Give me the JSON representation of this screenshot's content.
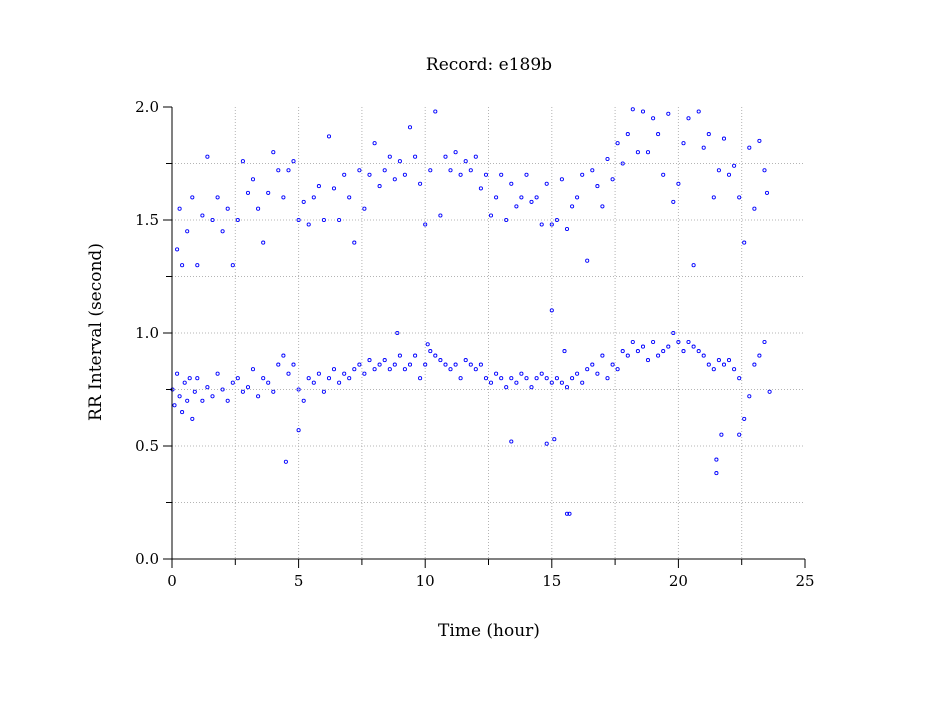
{
  "chart_data": {
    "type": "scatter",
    "title": "Record:  e189b",
    "xlabel": "Time (hour)",
    "ylabel": "RR Interval (second)",
    "xlim": [
      0,
      25
    ],
    "ylim": [
      0.0,
      2.0
    ],
    "x_ticks": [
      "0",
      "5",
      "10",
      "15",
      "20",
      "25"
    ],
    "y_ticks": [
      "0.0",
      "0.5",
      "1.0",
      "1.5",
      "2.0"
    ],
    "grid": true,
    "grid_style": "dotted",
    "marker": "open-circle",
    "colors": {
      "points": "#0000ff",
      "axes": "#000000",
      "grid": "#b4b4b4"
    },
    "x_range_of_data": [
      0.0,
      23.6
    ],
    "series": [
      {
        "points": [
          [
            0.02,
            0.75
          ],
          [
            0.1,
            0.68
          ],
          [
            0.2,
            0.82
          ],
          [
            0.3,
            0.72
          ],
          [
            0.4,
            0.65
          ],
          [
            0.5,
            0.78
          ],
          [
            0.6,
            0.7
          ],
          [
            0.7,
            0.8
          ],
          [
            0.8,
            0.62
          ],
          [
            0.9,
            0.74
          ],
          [
            1.0,
            0.8
          ],
          [
            1.2,
            0.7
          ],
          [
            1.4,
            0.76
          ],
          [
            1.6,
            0.72
          ],
          [
            1.8,
            0.82
          ],
          [
            2.0,
            0.75
          ],
          [
            2.2,
            0.7
          ],
          [
            2.4,
            0.78
          ],
          [
            2.6,
            0.8
          ],
          [
            2.8,
            0.74
          ],
          [
            3.0,
            0.76
          ],
          [
            3.2,
            0.84
          ],
          [
            3.4,
            0.72
          ],
          [
            3.6,
            0.8
          ],
          [
            3.8,
            0.78
          ],
          [
            4.0,
            0.74
          ],
          [
            4.2,
            0.86
          ],
          [
            4.4,
            0.9
          ],
          [
            4.6,
            0.82
          ],
          [
            4.8,
            0.86
          ],
          [
            5.0,
            0.75
          ],
          [
            5.2,
            0.7
          ],
          [
            5.4,
            0.8
          ],
          [
            5.6,
            0.78
          ],
          [
            5.8,
            0.82
          ],
          [
            6.0,
            0.74
          ],
          [
            6.2,
            0.8
          ],
          [
            6.4,
            0.84
          ],
          [
            6.6,
            0.78
          ],
          [
            6.8,
            0.82
          ],
          [
            7.0,
            0.8
          ],
          [
            7.2,
            0.84
          ],
          [
            7.4,
            0.86
          ],
          [
            7.6,
            0.82
          ],
          [
            7.8,
            0.88
          ],
          [
            8.0,
            0.84
          ],
          [
            8.2,
            0.86
          ],
          [
            8.4,
            0.88
          ],
          [
            8.6,
            0.84
          ],
          [
            8.8,
            0.86
          ],
          [
            9.0,
            0.9
          ],
          [
            9.2,
            0.84
          ],
          [
            9.4,
            0.86
          ],
          [
            9.6,
            0.9
          ],
          [
            9.8,
            0.8
          ],
          [
            10.0,
            0.86
          ],
          [
            10.2,
            0.92
          ],
          [
            10.4,
            0.9
          ],
          [
            10.6,
            0.88
          ],
          [
            10.8,
            0.86
          ],
          [
            11.0,
            0.84
          ],
          [
            11.2,
            0.86
          ],
          [
            11.4,
            0.8
          ],
          [
            11.6,
            0.88
          ],
          [
            11.8,
            0.86
          ],
          [
            12.0,
            0.84
          ],
          [
            12.2,
            0.86
          ],
          [
            12.4,
            0.8
          ],
          [
            12.6,
            0.78
          ],
          [
            12.8,
            0.82
          ],
          [
            13.0,
            0.8
          ],
          [
            13.2,
            0.76
          ],
          [
            13.4,
            0.8
          ],
          [
            13.6,
            0.78
          ],
          [
            13.8,
            0.82
          ],
          [
            14.0,
            0.8
          ],
          [
            14.2,
            0.76
          ],
          [
            14.4,
            0.8
          ],
          [
            14.6,
            0.82
          ],
          [
            14.8,
            0.8
          ],
          [
            15.0,
            0.78
          ],
          [
            15.2,
            0.8
          ],
          [
            15.4,
            0.78
          ],
          [
            15.6,
            0.76
          ],
          [
            15.8,
            0.8
          ],
          [
            16.0,
            0.82
          ],
          [
            16.2,
            0.78
          ],
          [
            16.4,
            0.84
          ],
          [
            16.6,
            0.86
          ],
          [
            16.8,
            0.82
          ],
          [
            17.0,
            0.9
          ],
          [
            17.2,
            0.8
          ],
          [
            17.4,
            0.86
          ],
          [
            17.6,
            0.84
          ],
          [
            17.8,
            0.92
          ],
          [
            18.0,
            0.9
          ],
          [
            18.2,
            0.96
          ],
          [
            18.4,
            0.92
          ],
          [
            18.6,
            0.94
          ],
          [
            18.8,
            0.88
          ],
          [
            19.0,
            0.96
          ],
          [
            19.2,
            0.9
          ],
          [
            19.4,
            0.92
          ],
          [
            19.6,
            0.94
          ],
          [
            19.8,
            1.0
          ],
          [
            20.0,
            0.96
          ],
          [
            20.2,
            0.92
          ],
          [
            20.4,
            0.96
          ],
          [
            20.6,
            0.94
          ],
          [
            20.8,
            0.92
          ],
          [
            21.0,
            0.9
          ],
          [
            21.2,
            0.86
          ],
          [
            21.4,
            0.84
          ],
          [
            21.6,
            0.88
          ],
          [
            21.8,
            0.86
          ],
          [
            22.0,
            0.88
          ],
          [
            22.2,
            0.84
          ],
          [
            22.4,
            0.8
          ],
          [
            22.6,
            0.62
          ],
          [
            22.8,
            0.72
          ],
          [
            23.0,
            0.86
          ],
          [
            23.2,
            0.9
          ],
          [
            23.4,
            0.96
          ],
          [
            23.6,
            0.74
          ],
          [
            0.2,
            1.37
          ],
          [
            0.3,
            1.55
          ],
          [
            0.4,
            1.3
          ],
          [
            0.6,
            1.45
          ],
          [
            0.8,
            1.6
          ],
          [
            1.0,
            1.3
          ],
          [
            1.2,
            1.52
          ],
          [
            1.4,
            1.78
          ],
          [
            1.6,
            1.5
          ],
          [
            1.8,
            1.6
          ],
          [
            2.0,
            1.45
          ],
          [
            2.2,
            1.55
          ],
          [
            2.4,
            1.3
          ],
          [
            2.6,
            1.5
          ],
          [
            2.8,
            1.76
          ],
          [
            3.0,
            1.62
          ],
          [
            3.2,
            1.68
          ],
          [
            3.4,
            1.55
          ],
          [
            3.6,
            1.4
          ],
          [
            3.8,
            1.62
          ],
          [
            4.0,
            1.8
          ],
          [
            4.2,
            1.72
          ],
          [
            4.4,
            1.6
          ],
          [
            4.6,
            1.72
          ],
          [
            4.8,
            1.76
          ],
          [
            5.0,
            1.5
          ],
          [
            5.2,
            1.58
          ],
          [
            5.4,
            1.48
          ],
          [
            5.6,
            1.6
          ],
          [
            5.8,
            1.65
          ],
          [
            6.0,
            1.5
          ],
          [
            6.2,
            1.87
          ],
          [
            6.4,
            1.64
          ],
          [
            6.6,
            1.5
          ],
          [
            6.8,
            1.7
          ],
          [
            7.0,
            1.6
          ],
          [
            7.2,
            1.4
          ],
          [
            7.4,
            1.72
          ],
          [
            7.6,
            1.55
          ],
          [
            7.8,
            1.7
          ],
          [
            8.0,
            1.84
          ],
          [
            8.2,
            1.65
          ],
          [
            8.4,
            1.72
          ],
          [
            8.6,
            1.78
          ],
          [
            8.8,
            1.68
          ],
          [
            9.0,
            1.76
          ],
          [
            9.2,
            1.7
          ],
          [
            9.4,
            1.91
          ],
          [
            9.6,
            1.78
          ],
          [
            9.8,
            1.66
          ],
          [
            10.0,
            1.48
          ],
          [
            10.2,
            1.72
          ],
          [
            10.4,
            1.98
          ],
          [
            10.6,
            1.52
          ],
          [
            10.8,
            1.78
          ],
          [
            11.0,
            1.72
          ],
          [
            11.2,
            1.8
          ],
          [
            11.4,
            1.7
          ],
          [
            11.6,
            1.76
          ],
          [
            11.8,
            1.72
          ],
          [
            12.0,
            1.78
          ],
          [
            12.2,
            1.64
          ],
          [
            12.4,
            1.7
          ],
          [
            12.6,
            1.52
          ],
          [
            12.8,
            1.6
          ],
          [
            13.0,
            1.7
          ],
          [
            13.2,
            1.5
          ],
          [
            13.4,
            1.66
          ],
          [
            13.6,
            1.56
          ],
          [
            13.8,
            1.6
          ],
          [
            14.0,
            1.7
          ],
          [
            14.2,
            1.58
          ],
          [
            14.4,
            1.6
          ],
          [
            14.6,
            1.48
          ],
          [
            14.8,
            1.66
          ],
          [
            15.0,
            1.48
          ],
          [
            15.2,
            1.5
          ],
          [
            15.4,
            1.68
          ],
          [
            15.6,
            1.46
          ],
          [
            15.8,
            1.56
          ],
          [
            16.0,
            1.6
          ],
          [
            16.2,
            1.7
          ],
          [
            16.4,
            1.32
          ],
          [
            16.6,
            1.72
          ],
          [
            16.8,
            1.65
          ],
          [
            17.0,
            1.56
          ],
          [
            17.2,
            1.77
          ],
          [
            17.4,
            1.68
          ],
          [
            17.6,
            1.84
          ],
          [
            17.8,
            1.75
          ],
          [
            18.0,
            1.88
          ],
          [
            18.2,
            1.99
          ],
          [
            18.4,
            1.8
          ],
          [
            18.6,
            1.98
          ],
          [
            18.8,
            1.8
          ],
          [
            19.0,
            1.95
          ],
          [
            19.2,
            1.88
          ],
          [
            19.4,
            1.7
          ],
          [
            19.6,
            1.97
          ],
          [
            19.8,
            1.58
          ],
          [
            20.0,
            1.66
          ],
          [
            20.2,
            1.84
          ],
          [
            20.4,
            1.95
          ],
          [
            20.6,
            1.3
          ],
          [
            20.8,
            1.98
          ],
          [
            21.0,
            1.82
          ],
          [
            21.2,
            1.88
          ],
          [
            21.4,
            1.6
          ],
          [
            21.6,
            1.72
          ],
          [
            21.8,
            1.86
          ],
          [
            22.0,
            1.7
          ],
          [
            22.2,
            1.74
          ],
          [
            22.4,
            1.6
          ],
          [
            22.6,
            1.4
          ],
          [
            22.8,
            1.82
          ],
          [
            23.0,
            1.55
          ],
          [
            23.2,
            1.85
          ],
          [
            23.4,
            1.72
          ],
          [
            23.5,
            1.62
          ],
          [
            4.5,
            0.43
          ],
          [
            5.0,
            0.57
          ],
          [
            13.4,
            0.52
          ],
          [
            14.8,
            0.51
          ],
          [
            15.1,
            0.53
          ],
          [
            15.6,
            0.2
          ],
          [
            15.7,
            0.2
          ],
          [
            21.5,
            0.44
          ],
          [
            21.5,
            0.38
          ],
          [
            21.7,
            0.55
          ],
          [
            22.4,
            0.55
          ],
          [
            15.0,
            1.1
          ],
          [
            15.5,
            0.92
          ],
          [
            10.1,
            0.95
          ],
          [
            8.9,
            1.0
          ]
        ]
      }
    ]
  }
}
